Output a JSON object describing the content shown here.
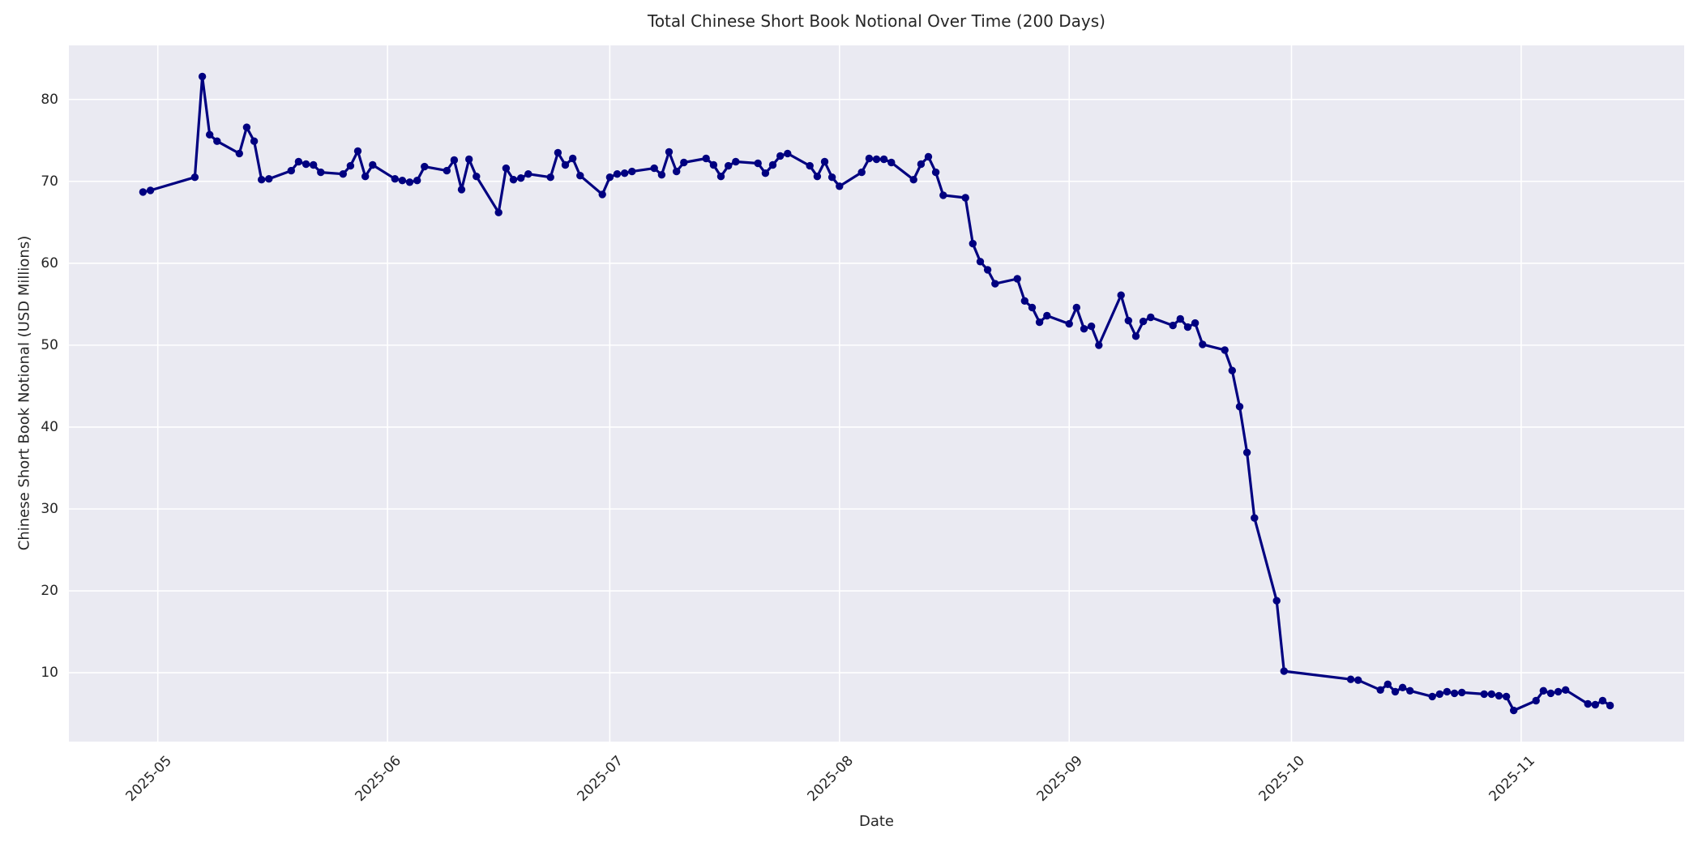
{
  "title": "Total Chinese Short Book Notional Over Time (200 Days)",
  "axes": {
    "xlabel": "Date",
    "ylabel": "Chinese Short Book Notional (USD Millions)",
    "x_ticks": [
      {
        "label": "2025-05",
        "date": "2025-05-01"
      },
      {
        "label": "2025-06",
        "date": "2025-06-01"
      },
      {
        "label": "2025-07",
        "date": "2025-07-01"
      },
      {
        "label": "2025-08",
        "date": "2025-08-01"
      },
      {
        "label": "2025-09",
        "date": "2025-09-01"
      },
      {
        "label": "2025-10",
        "date": "2025-10-01"
      },
      {
        "label": "2025-11",
        "date": "2025-11-01"
      }
    ],
    "y_ticks": [
      10,
      20,
      30,
      40,
      50,
      60,
      70,
      80
    ]
  },
  "style": {
    "line_color": "#000080",
    "marker_color": "#000080",
    "plot_bg": "#eaeaf2",
    "grid_color": "#ffffff",
    "text_color": "#262626"
  },
  "chart_data": {
    "type": "line",
    "title": "Total Chinese Short Book Notional Over Time (200 Days)",
    "xlabel": "Date",
    "ylabel": "Chinese Short Book Notional (USD Millions)",
    "grid": true,
    "legend_position": "none",
    "markers": true,
    "x_domain": [
      "2025-04-19",
      "2025-11-23"
    ],
    "ylim": [
      1.6,
      86.6
    ],
    "series": [
      {
        "name": "total_chinese_short_book_notional_usd_millions",
        "points": [
          [
            "2025-04-29",
            68.7
          ],
          [
            "2025-04-30",
            68.9
          ],
          [
            "2025-05-06",
            70.5
          ],
          [
            "2025-05-07",
            82.8
          ],
          [
            "2025-05-08",
            75.7
          ],
          [
            "2025-05-09",
            74.9
          ],
          [
            "2025-05-12",
            73.4
          ],
          [
            "2025-05-13",
            76.6
          ],
          [
            "2025-05-14",
            74.9
          ],
          [
            "2025-05-15",
            70.2
          ],
          [
            "2025-05-16",
            70.3
          ],
          [
            "2025-05-19",
            71.3
          ],
          [
            "2025-05-20",
            72.4
          ],
          [
            "2025-05-21",
            72.1
          ],
          [
            "2025-05-22",
            72.0
          ],
          [
            "2025-05-23",
            71.1
          ],
          [
            "2025-05-26",
            70.9
          ],
          [
            "2025-05-27",
            71.9
          ],
          [
            "2025-05-28",
            73.7
          ],
          [
            "2025-05-29",
            70.6
          ],
          [
            "2025-05-30",
            72.0
          ],
          [
            "2025-06-02",
            70.3
          ],
          [
            "2025-06-03",
            70.1
          ],
          [
            "2025-06-04",
            69.9
          ],
          [
            "2025-06-05",
            70.1
          ],
          [
            "2025-06-06",
            71.8
          ],
          [
            "2025-06-09",
            71.3
          ],
          [
            "2025-06-10",
            72.6
          ],
          [
            "2025-06-11",
            69.0
          ],
          [
            "2025-06-12",
            72.7
          ],
          [
            "2025-06-13",
            70.6
          ],
          [
            "2025-06-16",
            66.2
          ],
          [
            "2025-06-17",
            71.6
          ],
          [
            "2025-06-18",
            70.2
          ],
          [
            "2025-06-19",
            70.4
          ],
          [
            "2025-06-20",
            70.9
          ],
          [
            "2025-06-23",
            70.5
          ],
          [
            "2025-06-24",
            73.5
          ],
          [
            "2025-06-25",
            72.0
          ],
          [
            "2025-06-26",
            72.8
          ],
          [
            "2025-06-27",
            70.7
          ],
          [
            "2025-06-30",
            68.4
          ],
          [
            "2025-07-01",
            70.5
          ],
          [
            "2025-07-02",
            70.9
          ],
          [
            "2025-07-03",
            71.0
          ],
          [
            "2025-07-04",
            71.2
          ],
          [
            "2025-07-07",
            71.6
          ],
          [
            "2025-07-08",
            70.8
          ],
          [
            "2025-07-09",
            73.6
          ],
          [
            "2025-07-10",
            71.2
          ],
          [
            "2025-07-11",
            72.3
          ],
          [
            "2025-07-14",
            72.8
          ],
          [
            "2025-07-15",
            72.0
          ],
          [
            "2025-07-16",
            70.6
          ],
          [
            "2025-07-17",
            71.9
          ],
          [
            "2025-07-18",
            72.4
          ],
          [
            "2025-07-21",
            72.2
          ],
          [
            "2025-07-22",
            71.0
          ],
          [
            "2025-07-23",
            72.0
          ],
          [
            "2025-07-24",
            73.1
          ],
          [
            "2025-07-25",
            73.4
          ],
          [
            "2025-07-28",
            71.9
          ],
          [
            "2025-07-29",
            70.6
          ],
          [
            "2025-07-30",
            72.4
          ],
          [
            "2025-07-31",
            70.5
          ],
          [
            "2025-08-01",
            69.4
          ],
          [
            "2025-08-04",
            71.1
          ],
          [
            "2025-08-05",
            72.8
          ],
          [
            "2025-08-06",
            72.7
          ],
          [
            "2025-08-07",
            72.7
          ],
          [
            "2025-08-08",
            72.3
          ],
          [
            "2025-08-11",
            70.2
          ],
          [
            "2025-08-12",
            72.1
          ],
          [
            "2025-08-13",
            73.0
          ],
          [
            "2025-08-14",
            71.1
          ],
          [
            "2025-08-15",
            68.3
          ],
          [
            "2025-08-18",
            68.0
          ],
          [
            "2025-08-19",
            62.4
          ],
          [
            "2025-08-20",
            60.2
          ],
          [
            "2025-08-21",
            59.2
          ],
          [
            "2025-08-22",
            57.5
          ],
          [
            "2025-08-25",
            58.1
          ],
          [
            "2025-08-26",
            55.4
          ],
          [
            "2025-08-27",
            54.6
          ],
          [
            "2025-08-28",
            52.8
          ],
          [
            "2025-08-29",
            53.6
          ],
          [
            "2025-09-01",
            52.6
          ],
          [
            "2025-09-02",
            54.6
          ],
          [
            "2025-09-03",
            52.0
          ],
          [
            "2025-09-04",
            52.3
          ],
          [
            "2025-09-05",
            50.0
          ],
          [
            "2025-09-08",
            56.1
          ],
          [
            "2025-09-09",
            53.0
          ],
          [
            "2025-09-10",
            51.1
          ],
          [
            "2025-09-11",
            52.9
          ],
          [
            "2025-09-12",
            53.4
          ],
          [
            "2025-09-15",
            52.4
          ],
          [
            "2025-09-16",
            53.2
          ],
          [
            "2025-09-17",
            52.2
          ],
          [
            "2025-09-18",
            52.7
          ],
          [
            "2025-09-19",
            50.1
          ],
          [
            "2025-09-22",
            49.4
          ],
          [
            "2025-09-23",
            46.9
          ],
          [
            "2025-09-24",
            42.5
          ],
          [
            "2025-09-25",
            36.9
          ],
          [
            "2025-09-26",
            28.9
          ],
          [
            "2025-09-29",
            18.8
          ],
          [
            "2025-09-30",
            10.2
          ],
          [
            "2025-10-09",
            9.2
          ],
          [
            "2025-10-10",
            9.1
          ],
          [
            "2025-10-13",
            7.9
          ],
          [
            "2025-10-14",
            8.6
          ],
          [
            "2025-10-15",
            7.7
          ],
          [
            "2025-10-16",
            8.2
          ],
          [
            "2025-10-17",
            7.8
          ],
          [
            "2025-10-20",
            7.1
          ],
          [
            "2025-10-21",
            7.4
          ],
          [
            "2025-10-22",
            7.7
          ],
          [
            "2025-10-23",
            7.5
          ],
          [
            "2025-10-24",
            7.6
          ],
          [
            "2025-10-27",
            7.4
          ],
          [
            "2025-10-28",
            7.4
          ],
          [
            "2025-10-29",
            7.2
          ],
          [
            "2025-10-30",
            7.1
          ],
          [
            "2025-10-31",
            5.4
          ],
          [
            "2025-11-03",
            6.6
          ],
          [
            "2025-11-04",
            7.8
          ],
          [
            "2025-11-05",
            7.5
          ],
          [
            "2025-11-06",
            7.7
          ],
          [
            "2025-11-07",
            7.9
          ],
          [
            "2025-11-10",
            6.2
          ],
          [
            "2025-11-11",
            6.1
          ],
          [
            "2025-11-12",
            6.6
          ],
          [
            "2025-11-13",
            6.0
          ]
        ]
      }
    ]
  }
}
